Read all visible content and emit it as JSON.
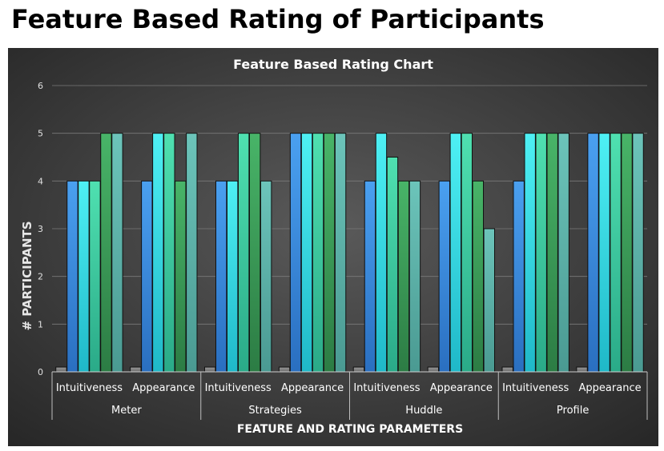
{
  "page": {
    "title": "Feature Based Rating of Participants"
  },
  "chart_data": {
    "type": "bar",
    "title": "Feature Based Rating Chart",
    "xlabel": "FEATURE AND RATING PARAMETERS",
    "ylabel": "# PARTICIPANTS",
    "ylim": [
      0,
      6
    ],
    "yticks": [
      0,
      1,
      2,
      3,
      4,
      5,
      6
    ],
    "grid": true,
    "legend": "none",
    "groups": [
      {
        "name": "Meter",
        "categories": [
          {
            "label": "Intuitiveness",
            "values": [
              0.1,
              4,
              4,
              4,
              5,
              5
            ]
          },
          {
            "label": "Appearance",
            "values": [
              0.1,
              4,
              5,
              5,
              4,
              5
            ]
          }
        ]
      },
      {
        "name": "Strategies",
        "categories": [
          {
            "label": "Intuitiveness",
            "values": [
              0.1,
              4,
              4,
              5,
              5,
              4
            ]
          },
          {
            "label": "Appearance",
            "values": [
              0.1,
              5,
              5,
              5,
              5,
              5
            ]
          }
        ]
      },
      {
        "name": "Huddle",
        "categories": [
          {
            "label": "Intuitiveness",
            "values": [
              0.1,
              4,
              5,
              4.5,
              4,
              4
            ]
          },
          {
            "label": "Appearance",
            "values": [
              0.1,
              4,
              5,
              5,
              4,
              3
            ]
          }
        ]
      },
      {
        "name": "Profile",
        "categories": [
          {
            "label": "Intuitiveness",
            "values": [
              0.1,
              4,
              5,
              5,
              5,
              5
            ]
          },
          {
            "label": "Appearance",
            "values": [
              0.1,
              5,
              5,
              5,
              5,
              5
            ]
          }
        ]
      }
    ],
    "series_colors": [
      "#8a8a8a",
      "#3b8fe6",
      "#3ee6ec",
      "#3fd8a6",
      "#3fa65a",
      "#5fb8ae"
    ]
  }
}
